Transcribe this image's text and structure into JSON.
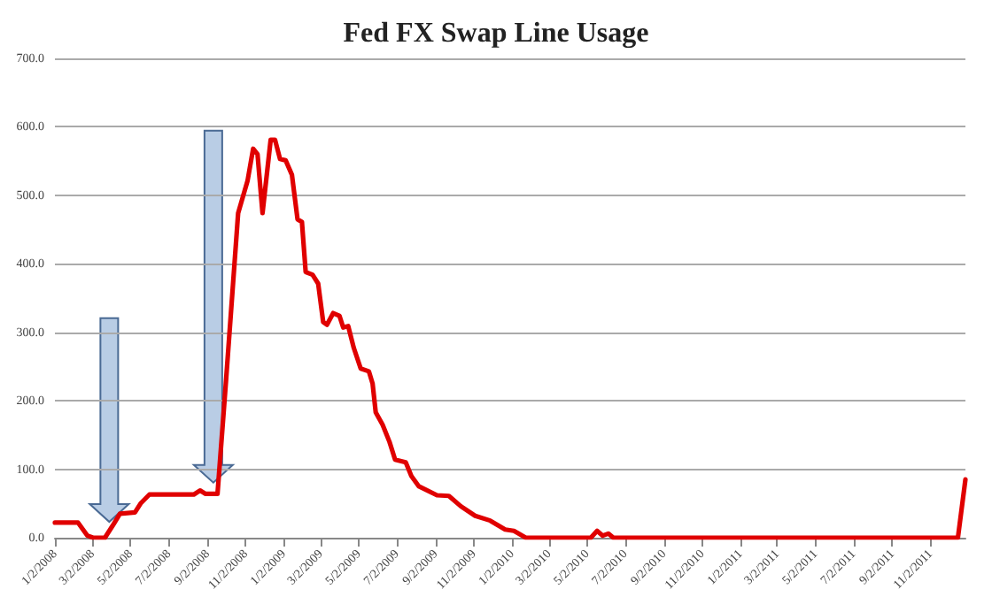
{
  "chart_data": {
    "type": "line",
    "title": "Fed FX Swap Line Usage",
    "x": [
      "2008-01-02",
      "2008-02-08",
      "2008-02-23",
      "2008-03-03",
      "2008-03-22",
      "2008-04-05",
      "2008-04-15",
      "2008-05-09",
      "2008-05-18",
      "2008-06-01",
      "2008-08-11",
      "2008-08-21",
      "2008-08-30",
      "2008-09-18",
      "2008-10-02",
      "2008-10-21",
      "2008-11-05",
      "2008-11-14",
      "2008-11-21",
      "2008-11-29",
      "2008-12-12",
      "2008-12-19",
      "2008-12-27",
      "2009-01-05",
      "2009-01-15",
      "2009-01-24",
      "2009-01-31",
      "2009-02-06",
      "2009-02-17",
      "2009-02-26",
      "2009-03-06",
      "2009-03-12",
      "2009-03-22",
      "2009-04-01",
      "2009-04-07",
      "2009-04-15",
      "2009-04-24",
      "2009-05-05",
      "2009-05-18",
      "2009-05-24",
      "2009-05-29",
      "2009-06-09",
      "2009-06-20",
      "2009-06-29",
      "2009-07-16",
      "2009-07-25",
      "2009-08-06",
      "2009-09-04",
      "2009-09-23",
      "2009-10-12",
      "2009-11-04",
      "2009-11-28",
      "2009-12-22",
      "2010-01-05",
      "2010-01-24",
      "2010-05-08",
      "2010-05-18",
      "2010-05-27",
      "2010-06-05",
      "2010-06-13",
      "2011-12-16",
      "2011-12-28"
    ],
    "series": [
      {
        "color": "#e00000",
        "values": [
          22,
          22,
          3,
          0,
          0,
          20,
          35,
          37,
          50,
          63,
          63,
          69,
          64,
          64,
          234,
          474,
          521,
          568,
          560,
          474,
          581,
          581,
          553,
          551,
          530,
          465,
          461,
          388,
          384,
          371,
          315,
          311,
          328,
          324,
          307,
          309,
          277,
          247,
          243,
          225,
          183,
          165,
          140,
          114,
          110,
          90,
          75,
          62,
          61,
          46,
          32,
          25,
          12,
          10,
          0,
          0,
          10,
          3,
          6,
          0,
          0,
          85
        ]
      }
    ],
    "xlim": [
      "2008-01-02",
      "2011-12-28"
    ],
    "xticks": [
      {
        "value": "2008-01-02",
        "label": "1/2/2008"
      },
      {
        "value": "2008-03-02",
        "label": "3/2/2008"
      },
      {
        "value": "2008-05-02",
        "label": "5/2/2008"
      },
      {
        "value": "2008-07-02",
        "label": "7/2/2008"
      },
      {
        "value": "2008-09-02",
        "label": "9/2/2008"
      },
      {
        "value": "2008-11-02",
        "label": "11/2/2008"
      },
      {
        "value": "2009-01-02",
        "label": "1/2/2009"
      },
      {
        "value": "2009-03-02",
        "label": "3/2/2009"
      },
      {
        "value": "2009-05-02",
        "label": "5/2/2009"
      },
      {
        "value": "2009-07-02",
        "label": "7/2/2009"
      },
      {
        "value": "2009-09-02",
        "label": "9/2/2009"
      },
      {
        "value": "2009-11-02",
        "label": "11/2/2009"
      },
      {
        "value": "2010-01-02",
        "label": "1/2/2010"
      },
      {
        "value": "2010-03-02",
        "label": "3/2/2010"
      },
      {
        "value": "2010-05-02",
        "label": "5/2/2010"
      },
      {
        "value": "2010-07-02",
        "label": "7/2/2010"
      },
      {
        "value": "2010-09-02",
        "label": "9/2/2010"
      },
      {
        "value": "2010-11-02",
        "label": "11/2/2010"
      },
      {
        "value": "2011-01-02",
        "label": "1/2/2011"
      },
      {
        "value": "2011-03-02",
        "label": "3/2/2011"
      },
      {
        "value": "2011-05-02",
        "label": "5/2/2011"
      },
      {
        "value": "2011-07-02",
        "label": "7/2/2011"
      },
      {
        "value": "2011-09-02",
        "label": "9/2/2011"
      },
      {
        "value": "2011-11-02",
        "label": "11/2/2011"
      }
    ],
    "ylim": [
      0,
      700
    ],
    "yticks": [
      {
        "value": 0,
        "label": "0.0"
      },
      {
        "value": 100,
        "label": "100.0"
      },
      {
        "value": 200,
        "label": "200.0"
      },
      {
        "value": 300,
        "label": "300.0"
      },
      {
        "value": 400,
        "label": "400.0"
      },
      {
        "value": 500,
        "label": "500.0"
      },
      {
        "value": 600,
        "label": "600.0"
      },
      {
        "value": 700,
        "label": "700.0"
      }
    ],
    "grid": "y",
    "marker": "none",
    "line_style": "solid"
  }
}
